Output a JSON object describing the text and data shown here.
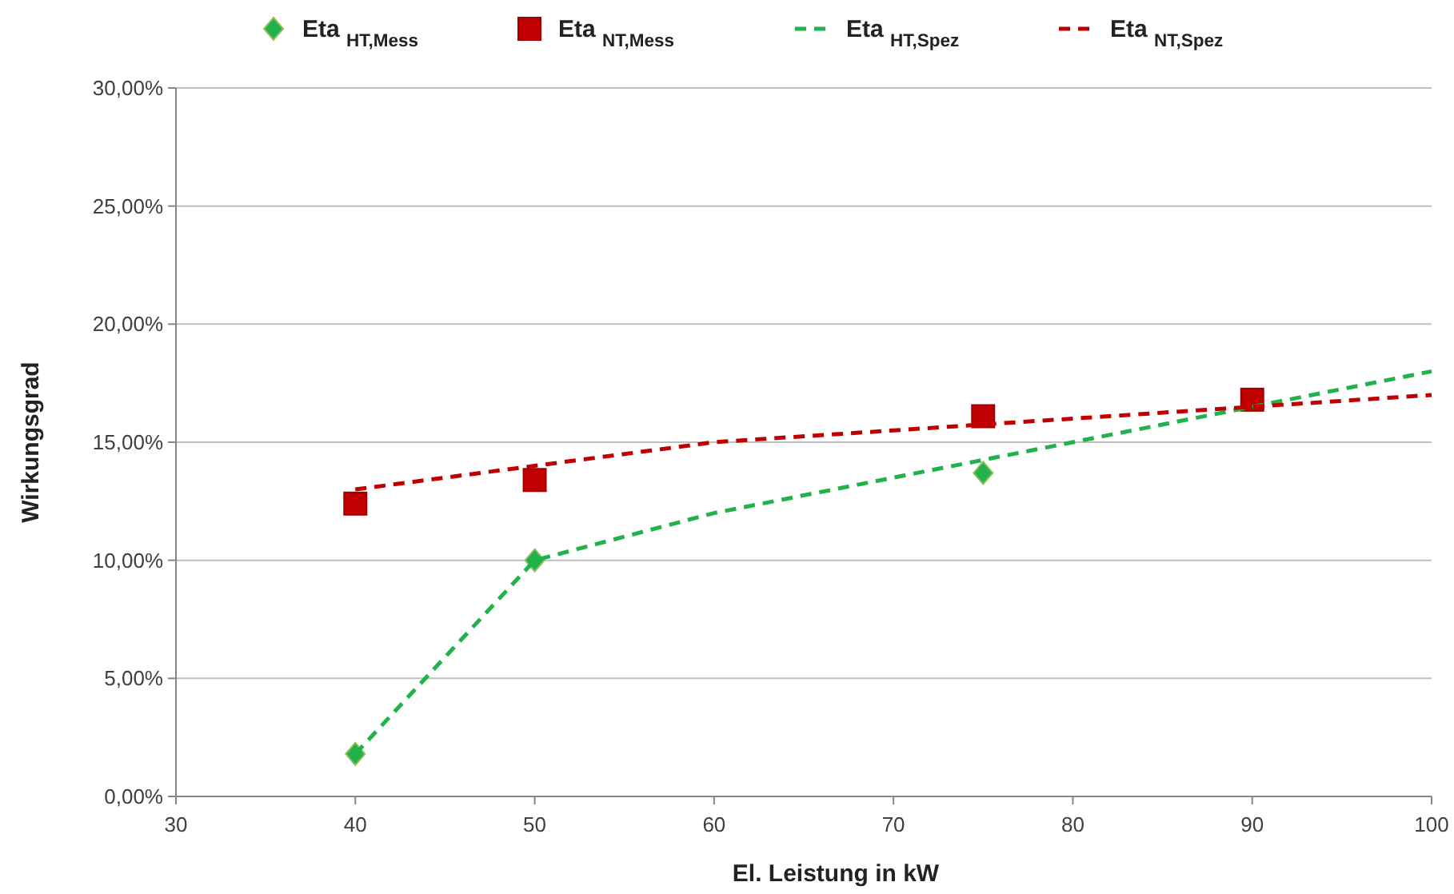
{
  "chart_data": {
    "type": "scatter",
    "xlabel": "El. Leistung in kW",
    "ylabel": "Wirkungsgrad",
    "legend": "top",
    "grid": "y",
    "xlim": [
      30,
      100
    ],
    "xticks": [
      30,
      40,
      50,
      60,
      70,
      80,
      90,
      100
    ],
    "ylim": [
      0,
      30
    ],
    "yticks": [
      {
        "value": 0,
        "label": "0,00%"
      },
      {
        "value": 5,
        "label": "5,00%"
      },
      {
        "value": 10,
        "label": "10,00%"
      },
      {
        "value": 15,
        "label": "15,00%"
      },
      {
        "value": 20,
        "label": "20,00%"
      },
      {
        "value": 25,
        "label": "25,00%"
      },
      {
        "value": 30,
        "label": "30,00%"
      }
    ],
    "series": [
      {
        "name": "Eta $_{HT,Mess}$",
        "type": "scatter",
        "marker": "diamond",
        "color": "#21b24b",
        "x": [
          40,
          50,
          75
        ],
        "values": [
          1.8,
          10,
          13.7
        ]
      },
      {
        "name": "Eta $_{NT,Mess}$",
        "type": "scatter",
        "marker": "square",
        "color": "#c00000",
        "x": [
          40,
          50,
          75,
          90
        ],
        "values": [
          12.4,
          13.4,
          16.1,
          16.8
        ]
      },
      {
        "name": "Eta $_{HT,Spez}$",
        "type": "line",
        "marker": "none",
        "line_style": "dashed",
        "color": "#21b24b",
        "x": [
          40,
          50,
          60,
          70,
          80,
          90,
          100
        ],
        "values": [
          1.8,
          10,
          12,
          13.5,
          15,
          16.5,
          18
        ]
      },
      {
        "name": "Eta $_{NT,Spez}$",
        "type": "line",
        "marker": "none",
        "line_style": "dashed",
        "color": "#c00000",
        "x": [
          40,
          50,
          60,
          70,
          80,
          90,
          100
        ],
        "values": [
          13,
          14,
          15,
          15.5,
          16,
          16.5,
          17
        ]
      }
    ]
  }
}
